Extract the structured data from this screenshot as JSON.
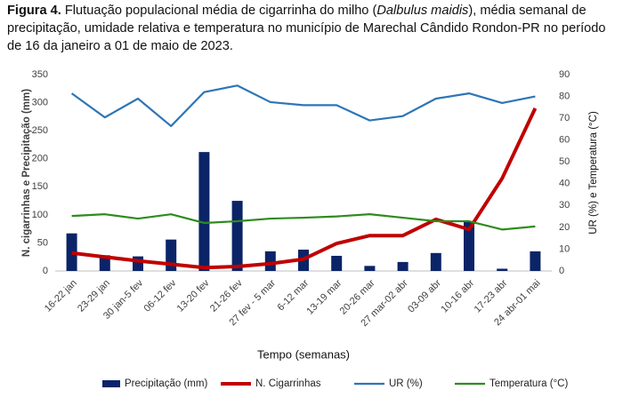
{
  "caption": {
    "label": "Figura 4.",
    "before": " Flutuação populacional média de cigarrinha do milho (",
    "italic": "Dalbulus maidis",
    "after": "), média semanal de precipitação, umidade relativa e temperatura no município de Marechal Cândido Rondon-PR no período de 16 da janeiro a 01 de maio de 2023."
  },
  "chart_data": {
    "type": "combo",
    "x_label": "Tempo (semanas)",
    "y_label": "N. cigarrinhas e Precipitação (mm)",
    "y2_label": "UR (%) e Temperatura (°C)",
    "categories": [
      "16-22 jan",
      "23-29 jan",
      "30 jan-5 fev",
      "06-12 fev",
      "13-20 fev",
      "21-26 fev",
      "27 fev - 5 mar",
      "6-12 mar",
      "13-19 mar",
      "20-26 mar",
      "27 mar-02 abr",
      "03-09 abr",
      "10-16 abr",
      "17-23 abr",
      "24 abr-01 mai"
    ],
    "series": [
      {
        "name": "Precipitação (mm)",
        "type": "bar",
        "color": "#0b2467",
        "values": [
          67,
          28,
          26,
          56,
          212,
          125,
          35,
          38,
          27,
          9,
          16,
          32,
          88,
          4,
          35
        ]
      },
      {
        "name": "N. Cigarrinhas",
        "type": "line",
        "color": "#c00000",
        "values": [
          32,
          25,
          18,
          12,
          6,
          8,
          13,
          21,
          49,
          63,
          63,
          92,
          74,
          165,
          290
        ]
      },
      {
        "name": "UR (%)",
        "type": "line",
        "axis": "y2",
        "color": "#2e75b6",
        "values": [
          81.4,
          70.4,
          79,
          66.4,
          82,
          85,
          77.4,
          76,
          76,
          69,
          71,
          79,
          81.4,
          77,
          80
        ]
      },
      {
        "name": "Temperatura (°C)",
        "type": "line",
        "axis": "y2",
        "color": "#2e8b1e",
        "values": [
          25.2,
          26,
          24,
          26,
          22,
          22.8,
          24,
          24.4,
          25,
          26,
          24.4,
          22.8,
          22.8,
          19,
          20.4
        ]
      }
    ],
    "ylim": [
      0,
      350
    ],
    "yticks": [
      0,
      50,
      100,
      150,
      200,
      250,
      300,
      350
    ],
    "y2lim": [
      0,
      90
    ],
    "y2ticks": [
      0,
      10,
      20,
      30,
      40,
      50,
      60,
      70,
      80,
      90
    ],
    "legend": "bottom"
  }
}
